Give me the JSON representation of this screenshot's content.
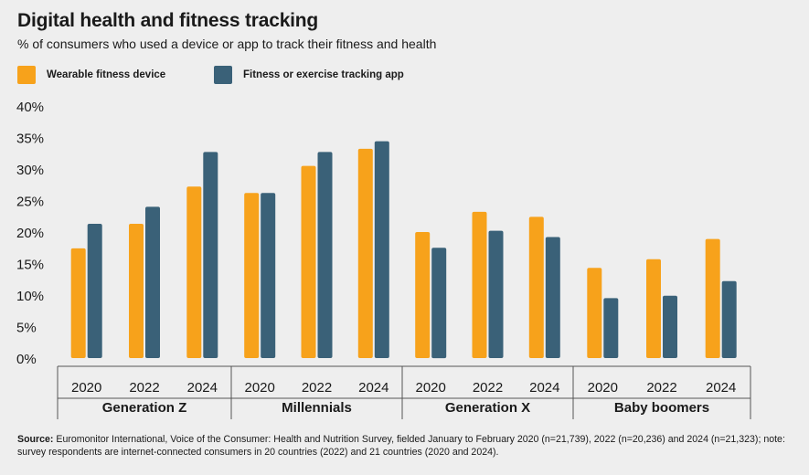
{
  "title": "Digital health and fitness tracking",
  "subtitle": "% of consumers who used a device or app to track their fitness and health",
  "source_label": "Source:",
  "source_text": "Euromonitor International, Voice of the Consumer: Health and Nutrition Survey, fielded January to February 2020 (n=21,739), 2022 (n=20,236) and 2024 (n=21,323); note: survey respondents are internet-connected consumers in 20 countries (2022) and 21 countries (2020 and 2024).",
  "colors": {
    "wearable": "#f7a21b",
    "app": "#3a6178",
    "background": "#eeeeee",
    "axis": "#555555"
  },
  "chart_data": {
    "type": "bar",
    "title": "Digital health and fitness tracking",
    "subtitle": "% of consumers who used a device or app to track their fitness and health",
    "xlabel": "",
    "ylabel": "",
    "ylim": [
      0,
      40
    ],
    "yticks": [
      "0%",
      "5%",
      "10%",
      "15%",
      "20%",
      "25%",
      "30%",
      "35%",
      "40%"
    ],
    "grid": false,
    "legend_position": "top-left",
    "groups": [
      {
        "name": "Generation Z",
        "years": [
          "2020",
          "2022",
          "2024"
        ]
      },
      {
        "name": "Millennials",
        "years": [
          "2020",
          "2022",
          "2024"
        ]
      },
      {
        "name": "Generation X",
        "years": [
          "2020",
          "2022",
          "2024"
        ]
      },
      {
        "name": "Baby boomers",
        "years": [
          "2020",
          "2022",
          "2024"
        ]
      }
    ],
    "series": [
      {
        "name": "Wearable fitness device",
        "color": "#f7a21b",
        "values": [
          17.4,
          21.3,
          27.2,
          26.2,
          30.5,
          33.2,
          20.0,
          23.2,
          22.4,
          14.3,
          15.7,
          18.9
        ]
      },
      {
        "name": "Fitness or exercise tracking app",
        "color": "#3a6178",
        "values": [
          21.3,
          24.0,
          32.7,
          26.2,
          32.7,
          34.4,
          17.5,
          20.2,
          19.2,
          9.5,
          9.9,
          12.2
        ]
      }
    ]
  }
}
